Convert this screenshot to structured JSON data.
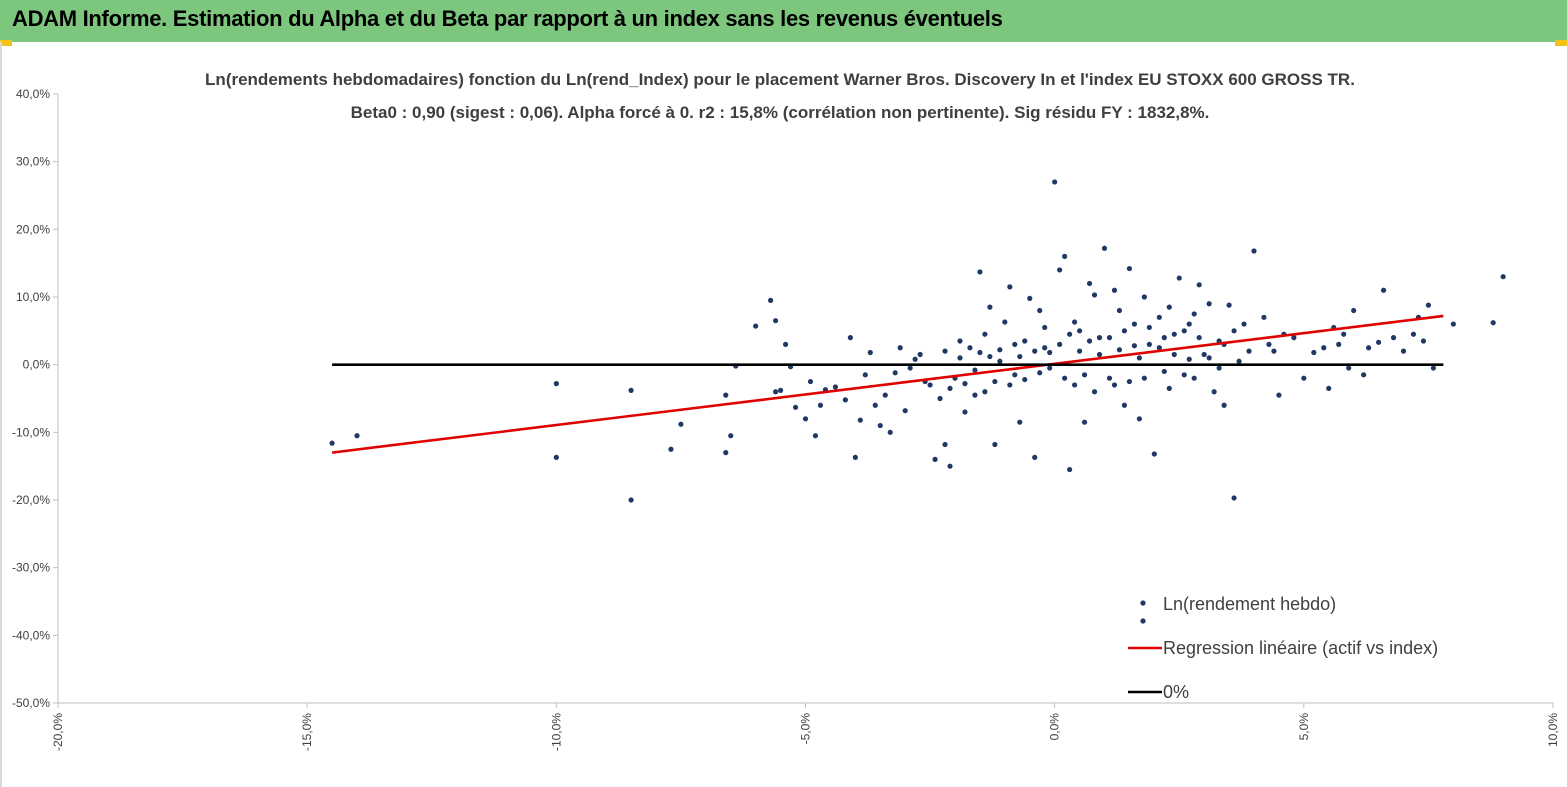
{
  "header": {
    "title": "ADAM Informe. Estimation du Alpha et du Beta par rapport à un index sans les revenus éventuels"
  },
  "colors": {
    "banner": "#7dc67e",
    "points": "#1f3864",
    "regression": "#e00000",
    "zero_line": "#000000"
  },
  "chart_data": {
    "type": "scatter",
    "title_line1": "Ln(rendements hebdomadaires) fonction du Ln(rend_Index) pour le placement Warner Bros. Discovery In et l'index EU STOXX 600 GROSS TR.",
    "title_line2": "Beta0 : 0,90 (sigest : 0,06). Alpha forcé à 0. r2 : 15,8% (corrélation non pertinente). Sig résidu FY : 1832,8%.",
    "x_ticks": [
      "-20,0%",
      "-15,0%",
      "-10,0%",
      "-5,0%",
      "0,0%",
      "5,0%",
      "10,0%"
    ],
    "y_ticks": [
      "40,0%",
      "30,0%",
      "20,0%",
      "10,0%",
      "0,0%",
      "-10,0%",
      "-20,0%",
      "-30,0%",
      "-40,0%",
      "-50,0%"
    ],
    "xlim": [
      -0.2,
      0.1
    ],
    "ylim": [
      -0.5,
      0.4
    ],
    "grid": false,
    "legend_position": "bottom-right",
    "series": [
      {
        "name": "Ln(rendement hebdo)",
        "kind": "scatter",
        "color": "#1f3864",
        "points": [
          [
            -0.145,
            -0.116
          ],
          [
            -0.14,
            -0.105
          ],
          [
            -0.1,
            -0.137
          ],
          [
            -0.1,
            -0.028
          ],
          [
            -0.085,
            -0.2
          ],
          [
            -0.085,
            -0.038
          ],
          [
            -0.077,
            -0.125
          ],
          [
            -0.075,
            -0.088
          ],
          [
            -0.066,
            -0.13
          ],
          [
            -0.066,
            -0.045
          ],
          [
            -0.065,
            -0.105
          ],
          [
            -0.064,
            -0.002
          ],
          [
            -0.06,
            0.057
          ],
          [
            -0.057,
            0.095
          ],
          [
            -0.056,
            0.065
          ],
          [
            -0.056,
            -0.04
          ],
          [
            -0.055,
            -0.038
          ],
          [
            -0.054,
            0.03
          ],
          [
            -0.053,
            -0.003
          ],
          [
            -0.052,
            -0.063
          ],
          [
            -0.05,
            -0.08
          ],
          [
            -0.049,
            -0.025
          ],
          [
            -0.048,
            -0.105
          ],
          [
            -0.047,
            -0.06
          ],
          [
            -0.046,
            -0.037
          ],
          [
            -0.044,
            -0.033
          ],
          [
            -0.042,
            -0.052
          ],
          [
            -0.041,
            0.04
          ],
          [
            -0.04,
            -0.137
          ],
          [
            -0.039,
            -0.082
          ],
          [
            -0.038,
            -0.015
          ],
          [
            -0.037,
            0.018
          ],
          [
            -0.036,
            -0.06
          ],
          [
            -0.035,
            -0.09
          ],
          [
            -0.034,
            -0.045
          ],
          [
            -0.033,
            -0.1
          ],
          [
            -0.032,
            -0.012
          ],
          [
            -0.031,
            0.025
          ],
          [
            -0.03,
            -0.068
          ],
          [
            -0.029,
            -0.005
          ],
          [
            -0.027,
            0.015
          ],
          [
            -0.025,
            -0.03
          ],
          [
            -0.024,
            -0.14
          ],
          [
            -0.022,
            -0.118
          ],
          [
            -0.021,
            -0.15
          ],
          [
            -0.02,
            -0.02
          ],
          [
            -0.019,
            0.035
          ],
          [
            -0.018,
            -0.07
          ],
          [
            -0.016,
            -0.008
          ],
          [
            -0.015,
            0.137
          ],
          [
            -0.014,
            0.045
          ],
          [
            -0.013,
            0.085
          ],
          [
            -0.012,
            -0.118
          ],
          [
            -0.011,
            0.005
          ],
          [
            -0.01,
            0.063
          ],
          [
            -0.009,
            0.115
          ],
          [
            -0.008,
            -0.015
          ],
          [
            -0.007,
            -0.085
          ],
          [
            -0.006,
            0.035
          ],
          [
            -0.005,
            0.098
          ],
          [
            -0.004,
            -0.137
          ],
          [
            -0.003,
            0.08
          ],
          [
            -0.002,
            0.055
          ],
          [
            -0.001,
            -0.005
          ],
          [
            0.0,
            0.27
          ],
          [
            0.001,
            0.14
          ],
          [
            0.002,
            0.16
          ],
          [
            0.003,
            -0.155
          ],
          [
            0.004,
            0.063
          ],
          [
            0.005,
            0.02
          ],
          [
            0.006,
            -0.085
          ],
          [
            0.007,
            0.12
          ],
          [
            0.008,
            0.103
          ],
          [
            0.009,
            0.04
          ],
          [
            0.01,
            0.172
          ],
          [
            0.011,
            -0.02
          ],
          [
            0.012,
            0.11
          ],
          [
            0.013,
            0.08
          ],
          [
            0.014,
            -0.06
          ],
          [
            0.015,
            0.142
          ],
          [
            0.016,
            0.028
          ],
          [
            0.017,
            -0.08
          ],
          [
            0.018,
            0.1
          ],
          [
            0.019,
            0.055
          ],
          [
            0.02,
            -0.132
          ],
          [
            0.021,
            0.025
          ],
          [
            0.022,
            -0.01
          ],
          [
            0.023,
            0.085
          ],
          [
            0.024,
            0.045
          ],
          [
            0.025,
            0.128
          ],
          [
            0.026,
            -0.015
          ],
          [
            0.027,
            0.06
          ],
          [
            0.028,
            0.075
          ],
          [
            0.029,
            0.118
          ],
          [
            0.03,
            0.015
          ],
          [
            0.031,
            0.09
          ],
          [
            0.032,
            -0.04
          ],
          [
            0.033,
            0.035
          ],
          [
            0.034,
            -0.06
          ],
          [
            0.035,
            0.088
          ],
          [
            0.036,
            -0.197
          ],
          [
            0.037,
            0.005
          ],
          [
            0.038,
            0.06
          ],
          [
            0.039,
            0.02
          ],
          [
            0.04,
            0.168
          ],
          [
            0.042,
            0.07
          ],
          [
            0.043,
            0.03
          ],
          [
            0.044,
            0.02
          ],
          [
            0.045,
            -0.045
          ],
          [
            0.046,
            0.045
          ],
          [
            0.048,
            0.04
          ],
          [
            0.05,
            -0.02
          ],
          [
            0.052,
            0.018
          ],
          [
            0.054,
            0.025
          ],
          [
            0.055,
            -0.035
          ],
          [
            0.056,
            0.055
          ],
          [
            0.057,
            0.03
          ],
          [
            0.058,
            0.045
          ],
          [
            0.059,
            -0.005
          ],
          [
            0.06,
            0.08
          ],
          [
            0.062,
            -0.015
          ],
          [
            0.063,
            0.025
          ],
          [
            0.065,
            0.033
          ],
          [
            0.066,
            0.11
          ],
          [
            0.068,
            0.04
          ],
          [
            0.07,
            0.02
          ],
          [
            0.072,
            0.045
          ],
          [
            0.073,
            0.07
          ],
          [
            0.074,
            0.035
          ],
          [
            0.075,
            0.088
          ],
          [
            0.076,
            -0.005
          ],
          [
            0.08,
            0.06
          ],
          [
            0.088,
            0.062
          ],
          [
            0.09,
            0.13
          ],
          [
            -0.001,
            0.018
          ],
          [
            -0.002,
            0.025
          ],
          [
            -0.003,
            -0.012
          ],
          [
            -0.004,
            0.02
          ],
          [
            -0.006,
            -0.022
          ],
          [
            -0.007,
            0.012
          ],
          [
            -0.008,
            0.03
          ],
          [
            -0.009,
            -0.03
          ],
          [
            -0.011,
            0.022
          ],
          [
            -0.012,
            -0.025
          ],
          [
            -0.013,
            0.012
          ],
          [
            -0.014,
            -0.04
          ],
          [
            -0.015,
            0.018
          ],
          [
            -0.016,
            -0.045
          ],
          [
            -0.017,
            0.025
          ],
          [
            -0.018,
            -0.028
          ],
          [
            -0.019,
            0.01
          ],
          [
            -0.021,
            -0.035
          ],
          [
            -0.022,
            0.02
          ],
          [
            -0.023,
            -0.05
          ],
          [
            -0.026,
            -0.025
          ],
          [
            -0.028,
            0.008
          ],
          [
            0.001,
            0.03
          ],
          [
            0.002,
            -0.02
          ],
          [
            0.003,
            0.045
          ],
          [
            0.004,
            -0.03
          ],
          [
            0.005,
            0.05
          ],
          [
            0.006,
            -0.015
          ],
          [
            0.007,
            0.035
          ],
          [
            0.008,
            -0.04
          ],
          [
            0.009,
            0.015
          ],
          [
            0.011,
            0.04
          ],
          [
            0.012,
            -0.03
          ],
          [
            0.013,
            0.022
          ],
          [
            0.014,
            0.05
          ],
          [
            0.015,
            -0.025
          ],
          [
            0.016,
            0.06
          ],
          [
            0.017,
            0.01
          ],
          [
            0.018,
            -0.02
          ],
          [
            0.019,
            0.03
          ],
          [
            0.021,
            0.07
          ],
          [
            0.022,
            0.04
          ],
          [
            0.023,
            -0.035
          ],
          [
            0.024,
            0.015
          ],
          [
            0.026,
            0.05
          ],
          [
            0.027,
            0.008
          ],
          [
            0.028,
            -0.02
          ],
          [
            0.029,
            0.04
          ],
          [
            0.031,
            0.01
          ],
          [
            0.033,
            -0.005
          ],
          [
            0.034,
            0.03
          ],
          [
            0.036,
            0.05
          ]
        ]
      },
      {
        "name": "Regression linéaire (actif vs index)",
        "kind": "line",
        "color": "#e00000",
        "points": [
          [
            -0.145,
            -0.13
          ],
          [
            0.078,
            0.072
          ]
        ]
      },
      {
        "name": "0%",
        "kind": "line",
        "color": "#000000",
        "points": [
          [
            -0.145,
            0.0
          ],
          [
            0.078,
            0.0
          ]
        ]
      }
    ]
  }
}
